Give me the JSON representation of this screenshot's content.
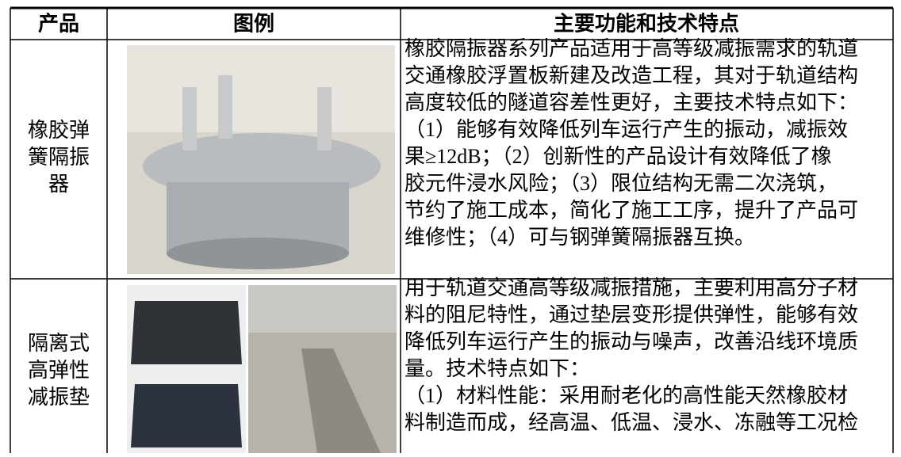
{
  "table": {
    "headers": [
      "产品",
      "图例",
      "主要功能和技术特点"
    ],
    "rows": [
      {
        "product": [
          "橡胶弹",
          "簧隔振",
          "器"
        ],
        "description": [
          "橡胶隔振器系列产品适用于高等级减振需求的轨道",
          "交通橡胶浮置板新建及改造工程，其对于轨道结构",
          "高度较低的隧道容差性更好，主要技术特点如下：",
          "（1）能够有效降低列车运行产生的振动，减振效",
          "果≥12dB；（2）创新性的产品设计有效降低了橡",
          "胶元件浸水风险；（3）限位结构无需二次浇筑，",
          "节约了施工成本，简化了施工工序，提升了产品可",
          "维修性；（4）可与钢弹簧隔振器互换。"
        ]
      },
      {
        "product": [
          "隔离式",
          "高弹性",
          "减振垫"
        ],
        "description": [
          "用于轨道交通高等级减振措施，主要利用高分子材",
          "料的阻尼特性，通过垫层变形提供弹性，能够有效",
          "降低列车运行产生的振动与噪声，改善沿线环境质",
          "量。技术特点如下：",
          "（1）材料性能：采用耐老化的高性能天然橡胶材",
          "料制造而成，经高温、低温、浸水、冻融等工况检"
        ]
      }
    ]
  }
}
